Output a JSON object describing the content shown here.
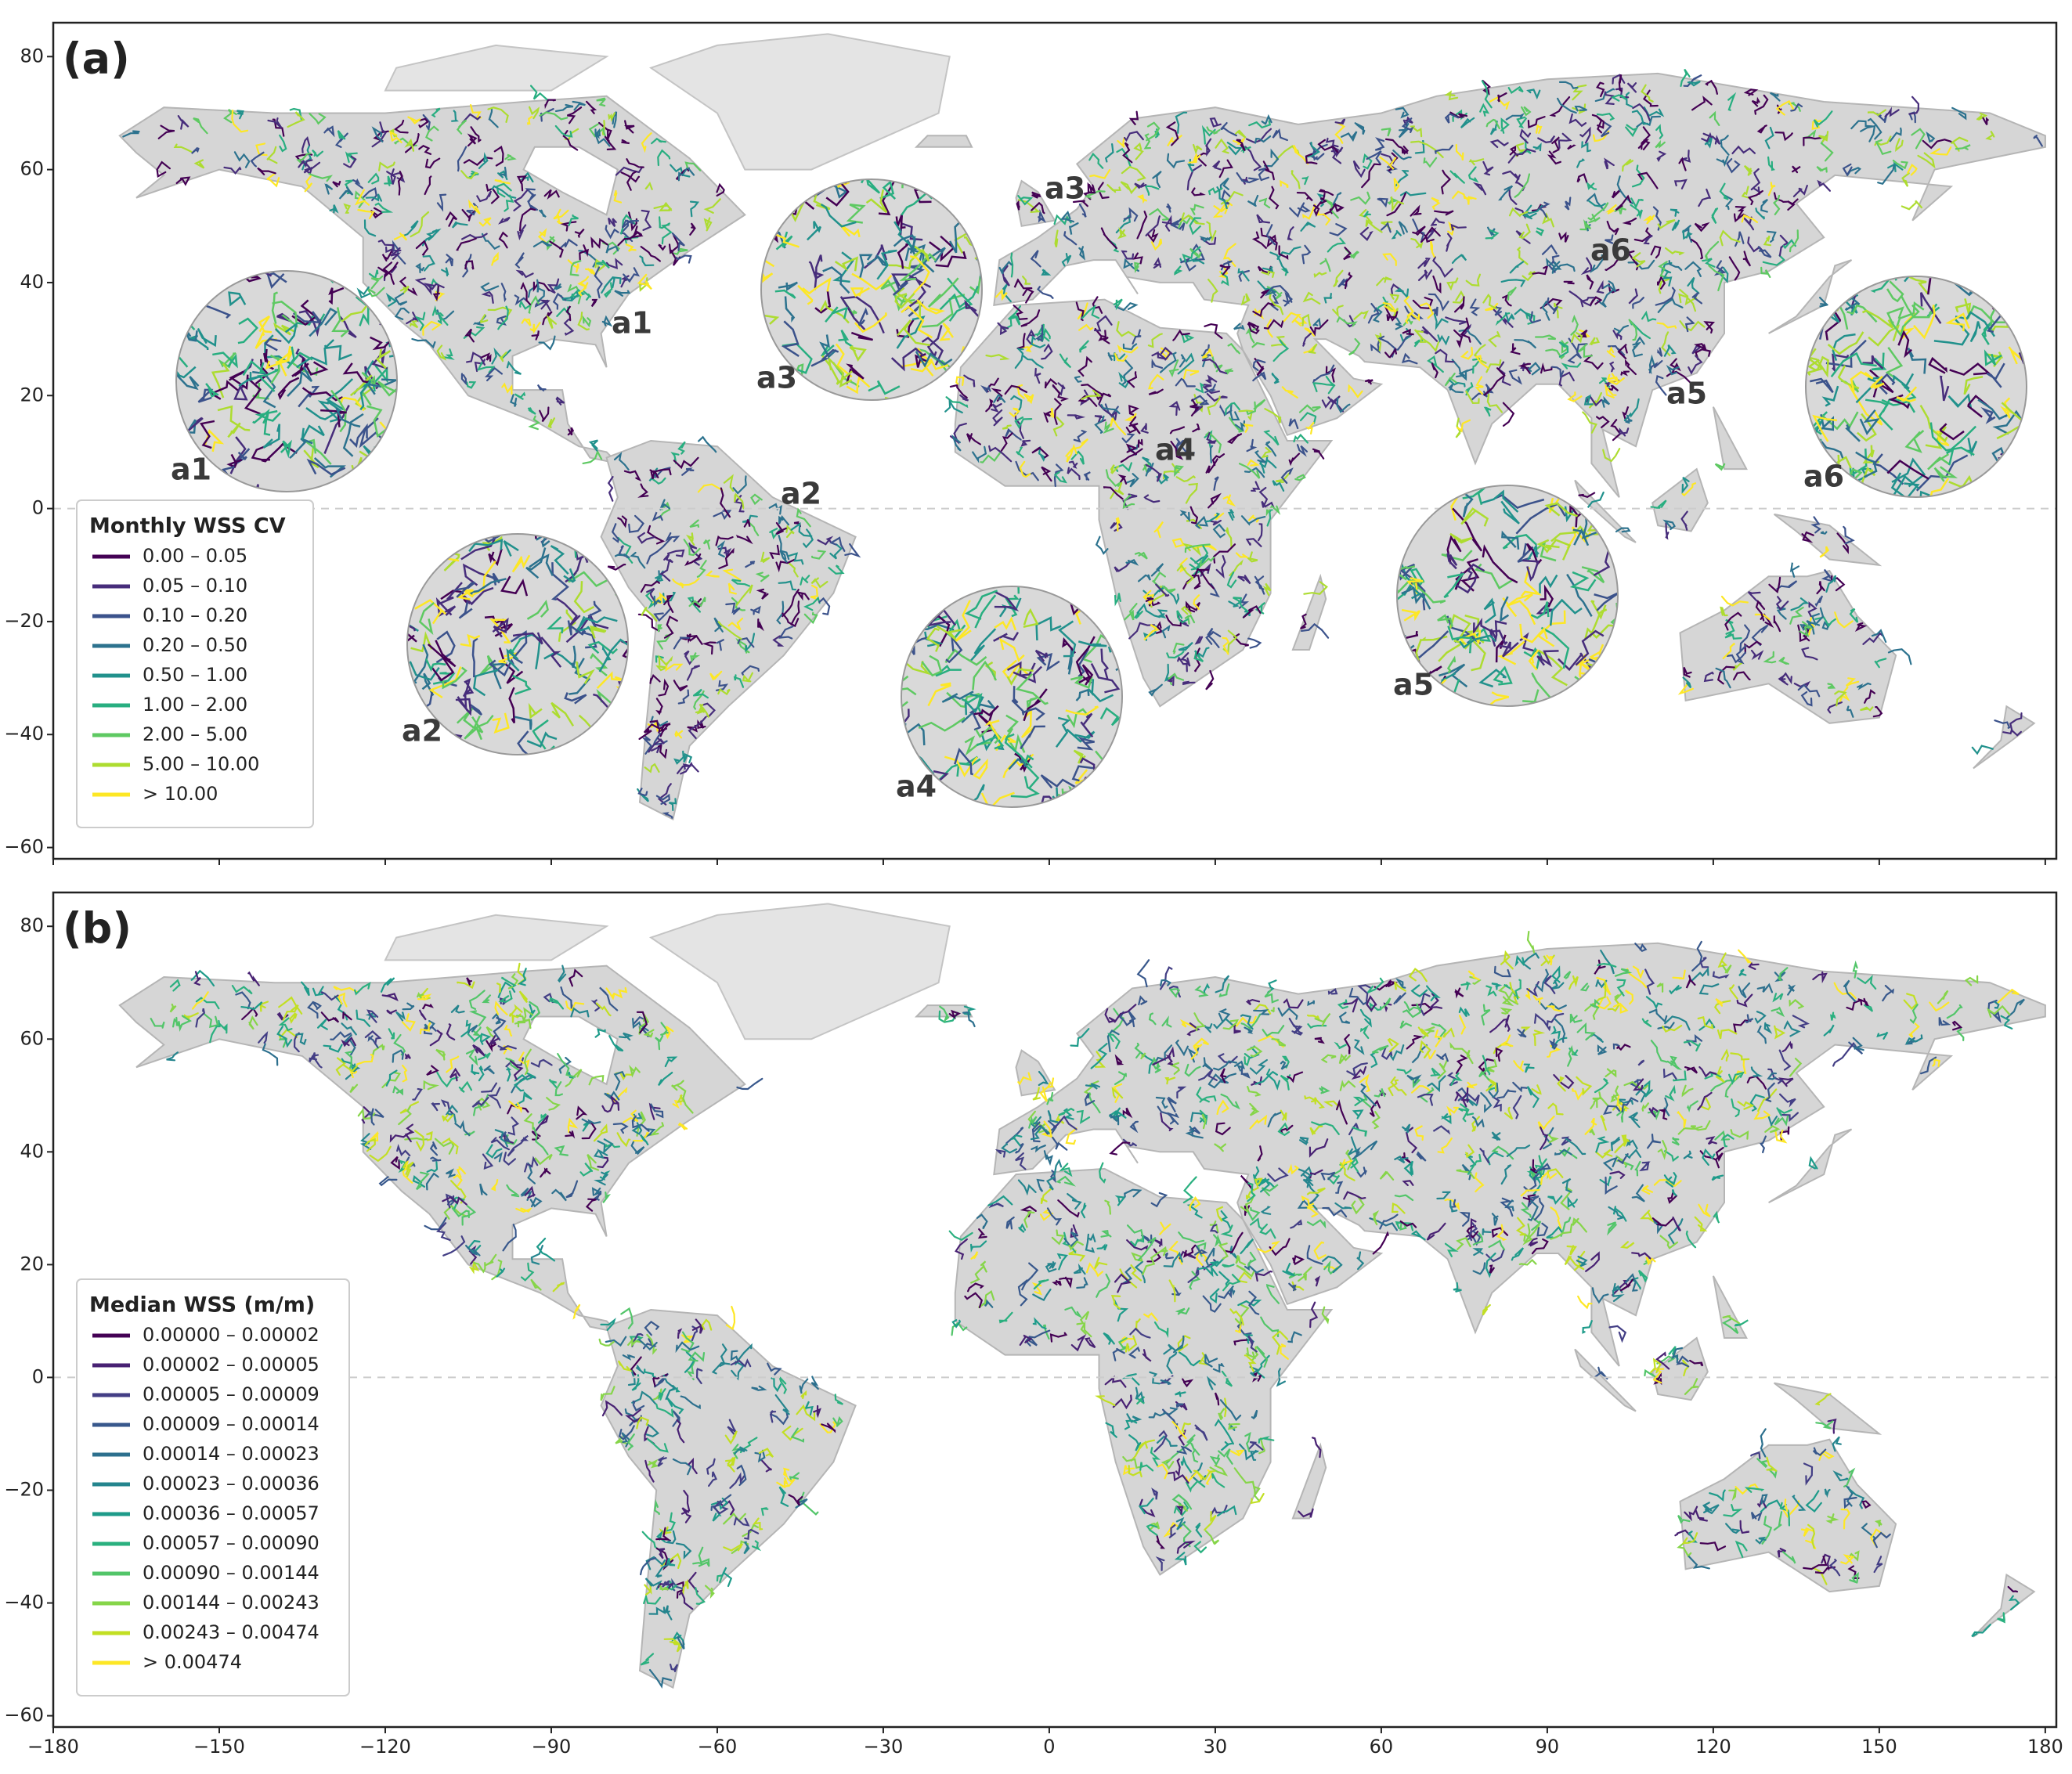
{
  "panels": [
    {
      "label": "(a)",
      "legend": {
        "title": "Monthly WSS CV",
        "entries": [
          {
            "label": "0.00 – 0.05",
            "color": "#440154"
          },
          {
            "label": "0.05 – 0.10",
            "color": "#472d7b"
          },
          {
            "label": "0.10 – 0.20",
            "color": "#3b528b"
          },
          {
            "label": "0.20 – 0.50",
            "color": "#2c728e"
          },
          {
            "label": "0.50 – 1.00",
            "color": "#21918c"
          },
          {
            "label": "1.00 – 2.00",
            "color": "#28ae80"
          },
          {
            "label": "2.00 – 5.00",
            "color": "#5ec962"
          },
          {
            "label": "5.00 – 10.00",
            "color": "#addc30"
          },
          {
            "label": "> 10.00",
            "color": "#fde725"
          }
        ]
      },
      "insets": [
        "a1",
        "a2",
        "a3",
        "a4",
        "a5",
        "a6"
      ]
    },
    {
      "label": "(b)",
      "legend": {
        "title": "Median WSS (m/m)",
        "entries": [
          {
            "label": "0.00000 – 0.00002",
            "color": "#440154"
          },
          {
            "label": "0.00002 – 0.00005",
            "color": "#482173"
          },
          {
            "label": "0.00005 – 0.00009",
            "color": "#433e85"
          },
          {
            "label": "0.00009 – 0.00014",
            "color": "#38588c"
          },
          {
            "label": "0.00014 – 0.00023",
            "color": "#2d708e"
          },
          {
            "label": "0.00023 – 0.00036",
            "color": "#25858e"
          },
          {
            "label": "0.00036 – 0.00057",
            "color": "#1e9b8a"
          },
          {
            "label": "0.00057 – 0.00090",
            "color": "#2ab07f"
          },
          {
            "label": "0.00090 – 0.00144",
            "color": "#52c569"
          },
          {
            "label": "0.00144 – 0.00243",
            "color": "#86d549"
          },
          {
            "label": "0.00243 – 0.00474",
            "color": "#c2df23"
          },
          {
            "label": "> 0.00474",
            "color": "#fde725"
          }
        ]
      }
    }
  ],
  "xlim": [
    -180,
    182
  ],
  "ylim": [
    -62,
    86
  ],
  "xticks": [
    {
      "value": -180,
      "label": "−180"
    },
    {
      "value": -150,
      "label": "−150"
    },
    {
      "value": -120,
      "label": "−120"
    },
    {
      "value": -90,
      "label": "−90"
    },
    {
      "value": -60,
      "label": "−60"
    },
    {
      "value": -30,
      "label": "−30"
    },
    0,
    30,
    60,
    90,
    120,
    150,
    180
  ],
  "yticks": [
    {
      "value": -60,
      "label": "−60"
    },
    {
      "value": -40,
      "label": "−40"
    },
    {
      "value": -20,
      "label": "−20"
    },
    0,
    20,
    40,
    60,
    80
  ]
}
